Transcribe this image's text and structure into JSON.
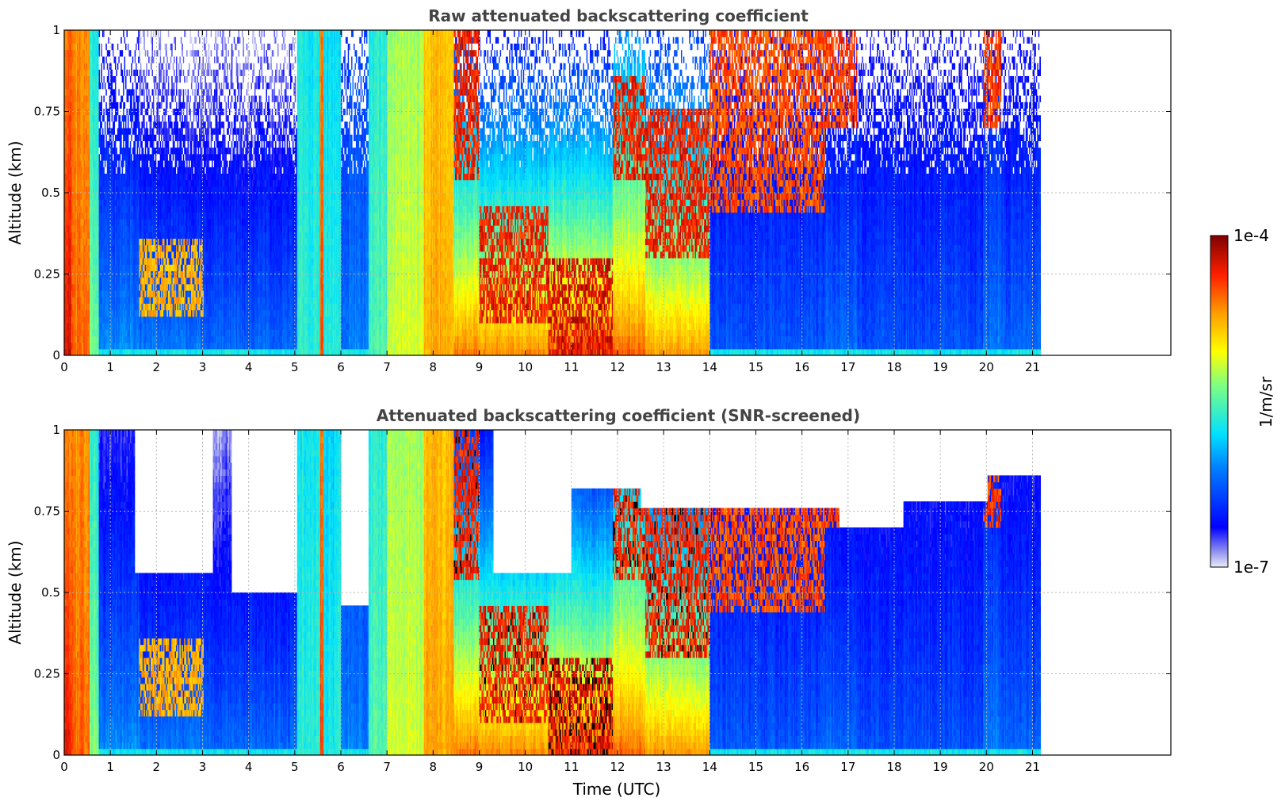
{
  "chart_data": [
    {
      "type": "heatmap",
      "title": "Raw attenuated backscattering coefficient",
      "xlabel": "",
      "ylabel": "Altitude (km)",
      "xlim": [
        0,
        24
      ],
      "ylim": [
        0,
        1
      ],
      "x_ticks": [
        "0",
        "1",
        "2",
        "3",
        "4",
        "5",
        "6",
        "7",
        "8",
        "9",
        "10",
        "11",
        "12",
        "13",
        "14",
        "15",
        "16",
        "17",
        "18",
        "19",
        "20",
        "21"
      ],
      "y_ticks": [
        "0",
        "0.25",
        "0.5",
        "0.75",
        "1"
      ],
      "data_end_hour": 21.15,
      "grid": true,
      "colorscale": "jet",
      "screened": false,
      "columns": [
        {
          "x": [
            0.0,
            0.15
          ],
          "surface": 0.92,
          "top": 0.8,
          "cloud": 0
        },
        {
          "x": [
            0.15,
            0.55
          ],
          "surface": 0.82,
          "top": 0.78,
          "cloud": 0
        },
        {
          "x": [
            0.55,
            0.75
          ],
          "surface": 0.55,
          "top": 0.45,
          "cloud": 0
        },
        {
          "x": [
            0.75,
            1.6
          ],
          "surface": 0.32,
          "top": 0.1,
          "cloud": 0
        },
        {
          "x": [
            1.6,
            3.0
          ],
          "surface": 0.3,
          "top": 0.05,
          "cloud": 0.8,
          "cloud_range": [
            0.12,
            0.35
          ]
        },
        {
          "x": [
            3.0,
            5.05
          ],
          "surface": 0.28,
          "top": 0.05,
          "cloud": 0
        },
        {
          "x": [
            5.05,
            5.55
          ],
          "surface": 0.45,
          "top": 0.42,
          "cloud": 0
        },
        {
          "x": [
            5.55,
            5.62
          ],
          "surface": 0.85,
          "top": 0.8,
          "cloud": 0
        },
        {
          "x": [
            5.62,
            6.0
          ],
          "surface": 0.44,
          "top": 0.4,
          "cloud": 0
        },
        {
          "x": [
            6.0,
            6.6
          ],
          "surface": 0.3,
          "top": 0.2,
          "cloud": 0
        },
        {
          "x": [
            6.6,
            7.0
          ],
          "surface": 0.5,
          "top": 0.45,
          "cloud": 0
        },
        {
          "x": [
            7.0,
            7.8
          ],
          "surface": 0.62,
          "top": 0.58,
          "cloud": 0
        },
        {
          "x": [
            7.8,
            8.45
          ],
          "surface": 0.75,
          "top": 0.72,
          "cloud": 0
        },
        {
          "x": [
            8.45,
            9.0
          ],
          "surface": 0.82,
          "top": 0.2,
          "cloud": 0.95,
          "cloud_range": [
            0.55,
            1.0
          ]
        },
        {
          "x": [
            9.0,
            10.5
          ],
          "surface": 0.8,
          "top": 0.15,
          "cloud": 0.95,
          "cloud_range": [
            0.1,
            0.45
          ]
        },
        {
          "x": [
            10.5,
            11.9
          ],
          "surface": 0.85,
          "top": 0.15,
          "cloud": 0.98,
          "cloud_range": [
            0.0,
            0.3
          ]
        },
        {
          "x": [
            11.9,
            12.6
          ],
          "surface": 0.83,
          "top": 0.3,
          "cloud": 0.95,
          "cloud_range": [
            0.55,
            0.85
          ]
        },
        {
          "x": [
            12.6,
            14.0
          ],
          "surface": 0.78,
          "top": 0.2,
          "cloud": 0.95,
          "cloud_range": [
            0.3,
            0.75
          ]
        },
        {
          "x": [
            14.0,
            16.5
          ],
          "surface": 0.25,
          "top": 0.1,
          "cloud": 0.9,
          "cloud_range": [
            0.45,
            1.0
          ]
        },
        {
          "x": [
            16.5,
            17.2
          ],
          "surface": 0.28,
          "top": 0.1,
          "cloud": 0.92,
          "cloud_range": [
            0.7,
            1.0
          ]
        },
        {
          "x": [
            17.2,
            19.9
          ],
          "surface": 0.24,
          "top": 0.1,
          "cloud": 0
        },
        {
          "x": [
            19.9,
            20.3
          ],
          "surface": 0.3,
          "top": 0.15,
          "cloud": 0.92,
          "cloud_range": [
            0.7,
            1.0
          ]
        },
        {
          "x": [
            20.3,
            21.15
          ],
          "surface": 0.27,
          "top": 0.1,
          "cloud": 0
        }
      ]
    },
    {
      "type": "heatmap",
      "title": "Attenuated backscattering coefficient (SNR-screened)",
      "xlabel": "Time (UTC)",
      "ylabel": "Altitude (km)",
      "xlim": [
        0,
        24
      ],
      "ylim": [
        0,
        1
      ],
      "x_ticks": [
        "0",
        "1",
        "2",
        "3",
        "4",
        "5",
        "6",
        "7",
        "8",
        "9",
        "10",
        "11",
        "12",
        "13",
        "14",
        "15",
        "16",
        "17",
        "18",
        "19",
        "20",
        "21"
      ],
      "y_ticks": [
        "0",
        "0.25",
        "0.5",
        "0.75",
        "1"
      ],
      "data_end_hour": 21.15,
      "grid": true,
      "colorscale": "jet",
      "screened": true,
      "screen_top": [
        {
          "x": [
            0.0,
            1.5
          ],
          "y": 1.0
        },
        {
          "x": [
            1.5,
            3.2
          ],
          "y": 0.55
        },
        {
          "x": [
            3.2,
            3.6
          ],
          "y": 1.0
        },
        {
          "x": [
            3.6,
            5.05
          ],
          "y": 0.5
        },
        {
          "x": [
            5.05,
            6.0
          ],
          "y": 1.0
        },
        {
          "x": [
            6.0,
            6.6
          ],
          "y": 0.45
        },
        {
          "x": [
            6.6,
            9.3
          ],
          "y": 1.0
        },
        {
          "x": [
            9.3,
            11.0
          ],
          "y": 0.55
        },
        {
          "x": [
            11.0,
            12.5
          ],
          "y": 0.82
        },
        {
          "x": [
            12.5,
            16.8
          ],
          "y": 0.75
        },
        {
          "x": [
            16.8,
            18.2
          ],
          "y": 0.7
        },
        {
          "x": [
            18.2,
            20.0
          ],
          "y": 0.78
        },
        {
          "x": [
            20.0,
            21.15
          ],
          "y": 0.86
        }
      ]
    }
  ],
  "colorbar": {
    "max_label": "1e-4",
    "min_label": "1e-7",
    "unit": "1/m/sr"
  }
}
